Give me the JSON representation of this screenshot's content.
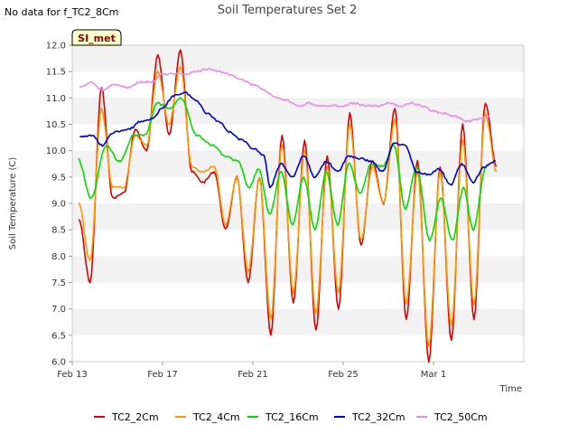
{
  "no_data_note": "No data for f_TC2_8Cm",
  "badge": {
    "label": "SI_met",
    "bg": "#ffffcc",
    "text_color": "#8b0000"
  },
  "chart_data": {
    "type": "line",
    "title": "Soil Temperatures Set 2",
    "xlabel": "Time",
    "ylabel": "Soil Temperature (C)",
    "ylim": [
      6.0,
      12.0
    ],
    "xlim": [
      "2025-02-13",
      "2025-03-05"
    ],
    "x_ticks": [
      {
        "date": "2025-02-13",
        "label": "Feb 13"
      },
      {
        "date": "2025-02-17",
        "label": "Feb 17"
      },
      {
        "date": "2025-02-21",
        "label": "Feb 21"
      },
      {
        "date": "2025-02-25",
        "label": "Feb 25"
      },
      {
        "date": "2025-03-01",
        "label": "Mar 1"
      }
    ],
    "y_ticks": [
      "6.0",
      "6.5",
      "7.0",
      "7.5",
      "8.0",
      "8.5",
      "9.0",
      "9.5",
      "10.0",
      "10.5",
      "11.0",
      "11.5",
      "12.0"
    ],
    "grid": "horizontal alternating bands",
    "legend_position": "bottom",
    "series": [
      {
        "name": "TC2_2Cm",
        "color": "#dd0000",
        "points": [
          [
            "2025-02-13 07:00",
            8.7
          ],
          [
            "2025-02-13 19:00",
            7.5
          ],
          [
            "2025-02-14 07:00",
            11.2
          ],
          [
            "2025-02-14 19:00",
            9.1
          ],
          [
            "2025-02-15 07:00",
            9.2
          ],
          [
            "2025-02-15 19:00",
            10.4
          ],
          [
            "2025-02-16 07:00",
            10.0
          ],
          [
            "2025-02-16 19:00",
            11.8
          ],
          [
            "2025-02-17 07:00",
            10.3
          ],
          [
            "2025-02-17 19:00",
            11.9
          ],
          [
            "2025-02-18 07:00",
            9.6
          ],
          [
            "2025-02-18 19:00",
            9.4
          ],
          [
            "2025-02-19 07:00",
            9.6
          ],
          [
            "2025-02-19 19:00",
            8.5
          ],
          [
            "2025-02-20 07:00",
            9.5
          ],
          [
            "2025-02-20 19:00",
            7.5
          ],
          [
            "2025-02-21 07:00",
            9.5
          ],
          [
            "2025-02-21 19:00",
            6.5
          ],
          [
            "2025-02-22 07:00",
            10.3
          ],
          [
            "2025-02-22 19:00",
            7.1
          ],
          [
            "2025-02-23 07:00",
            10.2
          ],
          [
            "2025-02-23 19:00",
            6.6
          ],
          [
            "2025-02-24 07:00",
            9.9
          ],
          [
            "2025-02-24 19:00",
            7.0
          ],
          [
            "2025-02-25 07:00",
            10.7
          ],
          [
            "2025-02-25 19:00",
            8.2
          ],
          [
            "2025-02-26 07:00",
            9.8
          ],
          [
            "2025-02-26 19:00",
            9.0
          ],
          [
            "2025-02-27 07:00",
            10.8
          ],
          [
            "2025-02-27 19:00",
            6.8
          ],
          [
            "2025-02-28 07:00",
            9.8
          ],
          [
            "2025-02-28 19:00",
            6.0
          ],
          [
            "2025-03-01 07:00",
            9.7
          ],
          [
            "2025-03-01 19:00",
            6.4
          ],
          [
            "2025-03-02 07:00",
            10.5
          ],
          [
            "2025-03-02 19:00",
            6.8
          ],
          [
            "2025-03-03 07:00",
            10.9
          ],
          [
            "2025-03-03 19:00",
            9.7
          ]
        ]
      },
      {
        "name": "TC2_4Cm",
        "color": "#ff9900",
        "points": [
          [
            "2025-02-13 07:00",
            9.0
          ],
          [
            "2025-02-13 19:00",
            7.9
          ],
          [
            "2025-02-14 07:00",
            10.8
          ],
          [
            "2025-02-14 19:00",
            9.3
          ],
          [
            "2025-02-15 07:00",
            9.3
          ],
          [
            "2025-02-15 19:00",
            10.3
          ],
          [
            "2025-02-16 07:00",
            10.1
          ],
          [
            "2025-02-16 19:00",
            11.5
          ],
          [
            "2025-02-17 07:00",
            10.5
          ],
          [
            "2025-02-17 19:00",
            11.6
          ],
          [
            "2025-02-18 07:00",
            9.7
          ],
          [
            "2025-02-18 19:00",
            9.6
          ],
          [
            "2025-02-19 07:00",
            9.7
          ],
          [
            "2025-02-19 19:00",
            8.6
          ],
          [
            "2025-02-20 07:00",
            9.5
          ],
          [
            "2025-02-20 19:00",
            7.7
          ],
          [
            "2025-02-21 07:00",
            9.5
          ],
          [
            "2025-02-21 19:00",
            6.8
          ],
          [
            "2025-02-22 07:00",
            10.1
          ],
          [
            "2025-02-22 19:00",
            7.3
          ],
          [
            "2025-02-23 07:00",
            10.0
          ],
          [
            "2025-02-23 19:00",
            6.9
          ],
          [
            "2025-02-24 07:00",
            9.7
          ],
          [
            "2025-02-24 19:00",
            7.3
          ],
          [
            "2025-02-25 07:00",
            10.5
          ],
          [
            "2025-02-25 19:00",
            8.3
          ],
          [
            "2025-02-26 07:00",
            9.7
          ],
          [
            "2025-02-26 19:00",
            9.0
          ],
          [
            "2025-02-27 07:00",
            10.6
          ],
          [
            "2025-02-27 19:00",
            7.1
          ],
          [
            "2025-02-28 07:00",
            9.6
          ],
          [
            "2025-02-28 19:00",
            6.3
          ],
          [
            "2025-03-01 07:00",
            9.6
          ],
          [
            "2025-03-01 19:00",
            6.7
          ],
          [
            "2025-03-02 07:00",
            10.2
          ],
          [
            "2025-03-02 19:00",
            7.1
          ],
          [
            "2025-03-03 07:00",
            10.7
          ],
          [
            "2025-03-03 19:00",
            9.6
          ]
        ]
      },
      {
        "name": "TC2_16Cm",
        "color": "#00dd00",
        "points": [
          [
            "2025-02-13 06:00",
            9.85
          ],
          [
            "2025-02-13 20:00",
            9.1
          ],
          [
            "2025-02-14 12:00",
            10.1
          ],
          [
            "2025-02-15 02:00",
            9.8
          ],
          [
            "2025-02-15 18:00",
            10.3
          ],
          [
            "2025-02-16 06:00",
            10.3
          ],
          [
            "2025-02-16 18:00",
            10.9
          ],
          [
            "2025-02-17 08:00",
            10.8
          ],
          [
            "2025-02-17 20:00",
            11.0
          ],
          [
            "2025-02-18 12:00",
            10.3
          ],
          [
            "2025-02-19 06:00",
            10.1
          ],
          [
            "2025-02-19 18:00",
            9.9
          ],
          [
            "2025-02-20 08:00",
            9.8
          ],
          [
            "2025-02-20 20:00",
            9.3
          ],
          [
            "2025-02-21 06:00",
            9.65
          ],
          [
            "2025-02-21 18:00",
            8.8
          ],
          [
            "2025-02-22 06:00",
            9.6
          ],
          [
            "2025-02-22 18:00",
            8.6
          ],
          [
            "2025-02-23 06:00",
            9.5
          ],
          [
            "2025-02-23 18:00",
            8.5
          ],
          [
            "2025-02-24 06:00",
            9.6
          ],
          [
            "2025-02-24 18:00",
            8.6
          ],
          [
            "2025-02-25 06:00",
            9.75
          ],
          [
            "2025-02-25 18:00",
            9.2
          ],
          [
            "2025-02-26 06:00",
            9.75
          ],
          [
            "2025-02-26 18:00",
            9.7
          ],
          [
            "2025-02-27 06:00",
            10.1
          ],
          [
            "2025-02-27 18:00",
            8.9
          ],
          [
            "2025-02-28 06:00",
            9.7
          ],
          [
            "2025-02-28 20:00",
            8.3
          ],
          [
            "2025-03-01 08:00",
            9.1
          ],
          [
            "2025-03-01 20:00",
            8.3
          ],
          [
            "2025-03-02 08:00",
            9.3
          ],
          [
            "2025-03-02 18:00",
            8.5
          ],
          [
            "2025-03-03 08:00",
            9.7
          ]
        ]
      },
      {
        "name": "TC2_32Cm",
        "color": "#0000cc",
        "points": [
          [
            "2025-02-13 08:00",
            10.25
          ],
          [
            "2025-02-13 20:00",
            10.3
          ],
          [
            "2025-02-14 08:00",
            10.1
          ],
          [
            "2025-02-14 20:00",
            10.35
          ],
          [
            "2025-02-15 12:00",
            10.4
          ],
          [
            "2025-02-16 00:00",
            10.55
          ],
          [
            "2025-02-16 12:00",
            10.6
          ],
          [
            "2025-02-17 00:00",
            10.8
          ],
          [
            "2025-02-17 12:00",
            11.05
          ],
          [
            "2025-02-18 00:00",
            11.1
          ],
          [
            "2025-02-18 12:00",
            10.95
          ],
          [
            "2025-02-19 00:00",
            10.7
          ],
          [
            "2025-02-19 12:00",
            10.55
          ],
          [
            "2025-02-20 00:00",
            10.35
          ],
          [
            "2025-02-20 12:00",
            10.2
          ],
          [
            "2025-02-21 00:00",
            10.05
          ],
          [
            "2025-02-21 12:00",
            9.9
          ],
          [
            "2025-02-21 18:00",
            9.3
          ],
          [
            "2025-02-22 06:00",
            9.75
          ],
          [
            "2025-02-22 18:00",
            9.5
          ],
          [
            "2025-02-23 06:00",
            9.9
          ],
          [
            "2025-02-23 18:00",
            9.5
          ],
          [
            "2025-02-24 06:00",
            9.8
          ],
          [
            "2025-02-24 18:00",
            9.6
          ],
          [
            "2025-02-25 06:00",
            9.9
          ],
          [
            "2025-02-25 18:00",
            9.85
          ],
          [
            "2025-02-26 06:00",
            9.8
          ],
          [
            "2025-02-26 18:00",
            9.6
          ],
          [
            "2025-02-27 06:00",
            10.15
          ],
          [
            "2025-02-27 18:00",
            10.1
          ],
          [
            "2025-02-28 06:00",
            9.6
          ],
          [
            "2025-02-28 18:00",
            9.55
          ],
          [
            "2025-03-01 06:00",
            9.65
          ],
          [
            "2025-03-01 18:00",
            9.35
          ],
          [
            "2025-03-02 06:00",
            9.75
          ],
          [
            "2025-03-02 18:00",
            9.4
          ],
          [
            "2025-03-03 06:00",
            9.7
          ],
          [
            "2025-03-03 18:00",
            9.8
          ]
        ]
      },
      {
        "name": "TC2_50Cm",
        "color": "#ee88ee",
        "points": [
          [
            "2025-02-13 08:00",
            11.2
          ],
          [
            "2025-02-13 20:00",
            11.3
          ],
          [
            "2025-02-14 08:00",
            11.15
          ],
          [
            "2025-02-14 20:00",
            11.25
          ],
          [
            "2025-02-15 12:00",
            11.2
          ],
          [
            "2025-02-16 00:00",
            11.3
          ],
          [
            "2025-02-16 12:00",
            11.3
          ],
          [
            "2025-02-17 00:00",
            11.45
          ],
          [
            "2025-02-17 12:00",
            11.45
          ],
          [
            "2025-02-18 00:00",
            11.45
          ],
          [
            "2025-02-18 12:00",
            11.5
          ],
          [
            "2025-02-19 00:00",
            11.55
          ],
          [
            "2025-02-19 12:00",
            11.5
          ],
          [
            "2025-02-20 00:00",
            11.45
          ],
          [
            "2025-02-20 12:00",
            11.35
          ],
          [
            "2025-02-21 00:00",
            11.25
          ],
          [
            "2025-02-21 12:00",
            11.15
          ],
          [
            "2025-02-22 00:00",
            11.0
          ],
          [
            "2025-02-22 12:00",
            10.95
          ],
          [
            "2025-02-23 00:00",
            10.85
          ],
          [
            "2025-02-23 12:00",
            10.9
          ],
          [
            "2025-02-24 00:00",
            10.85
          ],
          [
            "2025-02-24 12:00",
            10.85
          ],
          [
            "2025-02-25 00:00",
            10.85
          ],
          [
            "2025-02-25 12:00",
            10.9
          ],
          [
            "2025-02-26 00:00",
            10.85
          ],
          [
            "2025-02-26 12:00",
            10.85
          ],
          [
            "2025-02-27 00:00",
            10.9
          ],
          [
            "2025-02-27 12:00",
            10.85
          ],
          [
            "2025-02-28 00:00",
            10.9
          ],
          [
            "2025-02-28 12:00",
            10.85
          ],
          [
            "2025-03-01 00:00",
            10.75
          ],
          [
            "2025-03-01 12:00",
            10.7
          ],
          [
            "2025-03-02 00:00",
            10.65
          ],
          [
            "2025-03-02 12:00",
            10.55
          ],
          [
            "2025-03-03 00:00",
            10.6
          ],
          [
            "2025-03-03 12:00",
            10.65
          ]
        ]
      }
    ]
  }
}
